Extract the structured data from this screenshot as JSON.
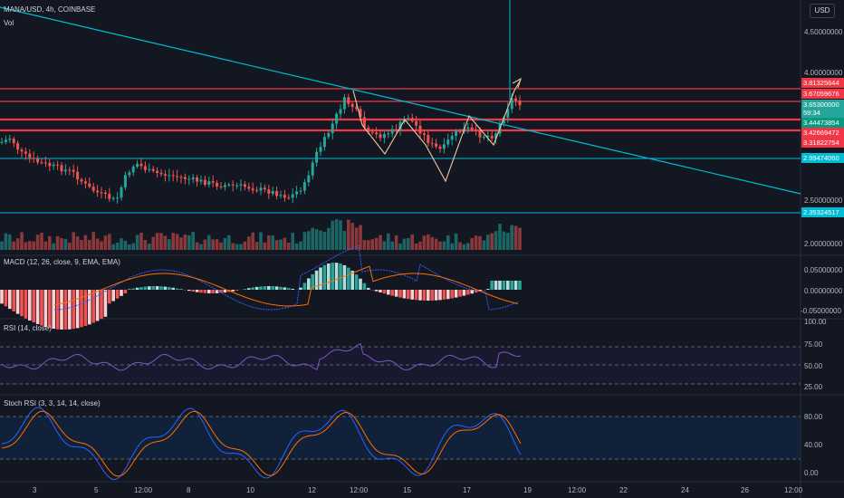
{
  "header": {
    "symbol": "MANA/USD, 4h, COINBASE",
    "vol_label": "Vol",
    "currency": "USD"
  },
  "main_axis": {
    "ticks": [
      {
        "label": "4.50000000",
        "value": 4.5
      },
      {
        "label": "4.00000000",
        "value": 4.0
      },
      {
        "label": "2.50000000",
        "value": 2.5
      },
      {
        "label": "2.00000000",
        "value": 2.0
      }
    ],
    "price_tags": [
      {
        "label": "3.81325644",
        "value": 3.81325644,
        "color": "#f23645"
      },
      {
        "label": "3.67059676",
        "value": 3.67059676,
        "color": "#f23645"
      },
      {
        "label": "3.65300000",
        "value": 3.653,
        "color": "#26a69a",
        "countdown": "59:34"
      },
      {
        "label": "3.44473854",
        "value": 3.44473854,
        "color": "#089981"
      },
      {
        "label": "3.42669472",
        "value": 3.42669472,
        "color": "#f23645"
      },
      {
        "label": "3.31822754",
        "value": 3.31822754,
        "color": "#f23645"
      },
      {
        "label": "2.99474060",
        "value": 2.9947406,
        "color": "#00bcd4"
      },
      {
        "label": "2.35324517",
        "value": 2.35324517,
        "color": "#00bcd4"
      }
    ]
  },
  "macd": {
    "title": "MACD (12, 26, close, 9, EMA, EMA)",
    "ticks": [
      {
        "label": "0.05000000",
        "value": 0.05
      },
      {
        "label": "0.00000000",
        "value": 0.0
      },
      {
        "label": "-0.05000000",
        "value": -0.05
      }
    ]
  },
  "rsi": {
    "title": "RSI (14, close)",
    "ticks": [
      {
        "label": "100.00",
        "value": 100
      },
      {
        "label": "75.00",
        "value": 75
      },
      {
        "label": "50.00",
        "value": 50
      },
      {
        "label": "25.00",
        "value": 25
      }
    ]
  },
  "stoch": {
    "title": "Stoch RSI (3, 3, 14, 14, close)",
    "ticks": [
      {
        "label": "80.00",
        "value": 80
      },
      {
        "label": "40.00",
        "value": 40
      },
      {
        "label": "0.00",
        "value": 0
      }
    ]
  },
  "time_axis": [
    "3",
    "5",
    "12:00",
    "8",
    "10",
    "12",
    "12:00",
    "15",
    "17",
    "19",
    "12:00",
    "22",
    "24",
    "26",
    "12:00"
  ],
  "colors": {
    "background": "#131722",
    "up": "#26a69a",
    "down": "#ef5350",
    "trendline": "#00bcd4",
    "resistance": "#f23645",
    "pattern": "#f7c59f"
  }
}
